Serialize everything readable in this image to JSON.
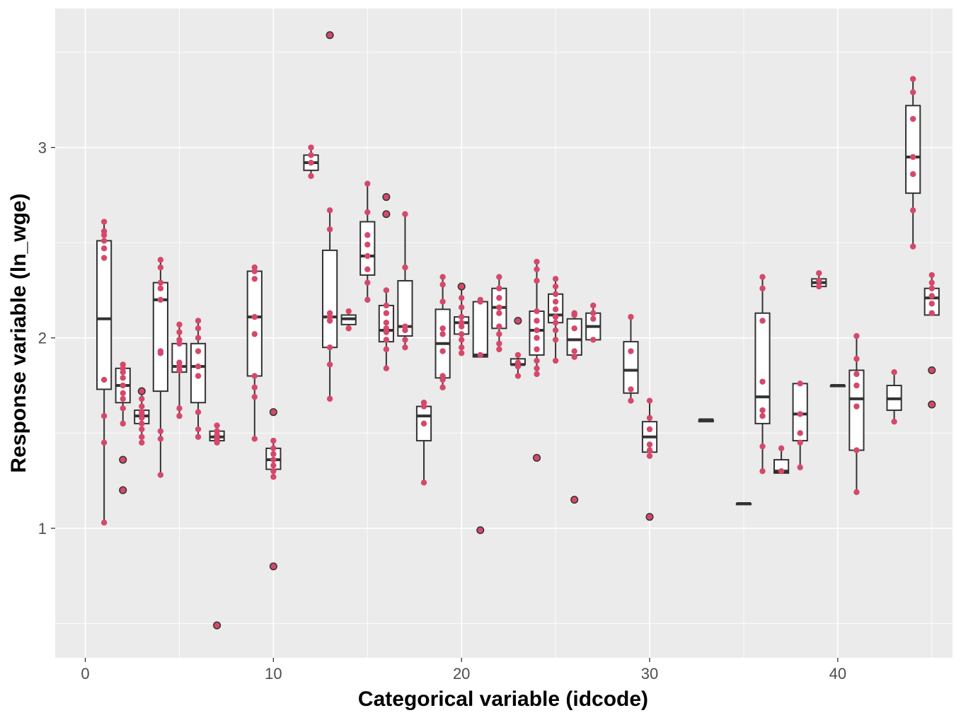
{
  "chart_data": {
    "type": "boxplot",
    "title": "",
    "xlabel": "Categorical variable (idcode)",
    "ylabel": "Response variable (ln_wge)",
    "xlim": [
      -1.6,
      46.1
    ],
    "ylim": [
      0.32,
      3.73
    ],
    "x_ticks": [
      0,
      10,
      20,
      30,
      40
    ],
    "y_ticks": [
      1,
      2,
      3
    ],
    "x_tick_labels": [
      "0",
      "10",
      "20",
      "30",
      "40"
    ],
    "y_tick_labels": [
      "1",
      "2",
      "3"
    ],
    "grid": true,
    "colors": {
      "panel_background": "#ebebeb",
      "grid_line": "#ffffff",
      "box_fill": "#ffffff",
      "box_line": "#333333",
      "points": "#d6486a",
      "outlier_fill": "#d6486a",
      "outlier_stroke": "#333333"
    },
    "boxes": [
      {
        "x": 1,
        "q1": 1.73,
        "median": 2.1,
        "q3": 2.51,
        "lo": 1.03,
        "hi": 2.6,
        "outliers": [],
        "points": [
          1.03,
          1.45,
          1.59,
          1.78,
          2.42,
          2.47,
          2.51,
          2.54,
          2.56,
          2.61
        ]
      },
      {
        "x": 2,
        "q1": 1.66,
        "median": 1.75,
        "q3": 1.84,
        "lo": 1.55,
        "hi": 1.86,
        "outliers": [
          1.36,
          1.2
        ],
        "points": [
          1.55,
          1.63,
          1.68,
          1.71,
          1.75,
          1.79,
          1.82,
          1.84,
          1.86
        ]
      },
      {
        "x": 3,
        "q1": 1.55,
        "median": 1.59,
        "q3": 1.62,
        "lo": 1.45,
        "hi": 1.72,
        "outliers": [
          1.72
        ],
        "points": [
          1.45,
          1.48,
          1.52,
          1.55,
          1.58,
          1.6,
          1.61,
          1.64,
          1.68
        ]
      },
      {
        "x": 4,
        "q1": 1.72,
        "median": 2.2,
        "q3": 2.29,
        "lo": 1.28,
        "hi": 2.41,
        "outliers": [],
        "points": [
          1.28,
          1.47,
          1.51,
          1.92,
          1.93,
          2.2,
          2.26,
          2.29,
          2.37,
          2.41
        ]
      },
      {
        "x": 5,
        "q1": 1.82,
        "median": 1.85,
        "q3": 1.97,
        "lo": 1.59,
        "hi": 2.07,
        "outliers": [],
        "points": [
          1.59,
          1.63,
          1.83,
          1.85,
          1.87,
          1.97,
          1.99,
          2.03,
          2.07
        ]
      },
      {
        "x": 6,
        "q1": 1.66,
        "median": 1.85,
        "q3": 1.97,
        "lo": 1.48,
        "hi": 2.09,
        "outliers": [],
        "points": [
          1.48,
          1.52,
          1.61,
          1.8,
          1.85,
          1.93,
          2.0,
          2.05,
          2.09
        ]
      },
      {
        "x": 7,
        "q1": 1.46,
        "median": 1.48,
        "q3": 1.51,
        "lo": 1.45,
        "hi": 1.54,
        "outliers": [
          0.49
        ],
        "points": [
          1.45,
          1.47,
          1.49,
          1.51,
          1.54
        ]
      },
      {
        "x": 9,
        "q1": 1.8,
        "median": 2.11,
        "q3": 2.35,
        "lo": 1.47,
        "hi": 2.37,
        "outliers": [],
        "points": [
          1.47,
          1.69,
          1.74,
          1.8,
          2.02,
          2.11,
          2.31,
          2.35,
          2.37
        ]
      },
      {
        "x": 10,
        "q1": 1.31,
        "median": 1.36,
        "q3": 1.42,
        "lo": 1.27,
        "hi": 1.46,
        "outliers": [
          1.61,
          0.8
        ],
        "points": [
          1.27,
          1.3,
          1.33,
          1.36,
          1.39,
          1.42,
          1.46
        ]
      },
      {
        "x": 12,
        "q1": 2.88,
        "median": 2.92,
        "q3": 2.96,
        "lo": 2.85,
        "hi": 3.0,
        "outliers": [],
        "points": [
          2.85,
          2.92,
          2.96,
          3.0
        ]
      },
      {
        "x": 13,
        "q1": 1.95,
        "median": 2.11,
        "q3": 2.46,
        "lo": 1.68,
        "hi": 2.67,
        "outliers": [
          3.59
        ],
        "points": [
          1.68,
          1.86,
          1.95,
          2.09,
          2.11,
          2.13,
          2.57,
          2.67
        ]
      },
      {
        "x": 14,
        "q1": 2.07,
        "median": 2.1,
        "q3": 2.12,
        "lo": 2.05,
        "hi": 2.14,
        "outliers": [],
        "points": [
          2.05,
          2.14
        ]
      },
      {
        "x": 15,
        "q1": 2.33,
        "median": 2.43,
        "q3": 2.61,
        "lo": 2.2,
        "hi": 2.81,
        "outliers": [],
        "points": [
          2.2,
          2.29,
          2.36,
          2.43,
          2.49,
          2.54,
          2.66,
          2.81
        ]
      },
      {
        "x": 16,
        "q1": 1.98,
        "median": 2.04,
        "q3": 2.17,
        "lo": 1.84,
        "hi": 2.25,
        "outliers": [
          2.74,
          2.65
        ],
        "points": [
          1.84,
          1.94,
          1.99,
          2.03,
          2.05,
          2.08,
          2.13,
          2.17,
          2.25
        ]
      },
      {
        "x": 17,
        "q1": 2.01,
        "median": 2.06,
        "q3": 2.3,
        "lo": 1.95,
        "hi": 2.65,
        "outliers": [],
        "points": [
          1.95,
          1.99,
          2.04,
          2.06,
          2.37,
          2.65
        ]
      },
      {
        "x": 18,
        "q1": 1.46,
        "median": 1.59,
        "q3": 1.64,
        "lo": 1.24,
        "hi": 1.66,
        "outliers": [],
        "points": [
          1.24,
          1.55,
          1.64,
          1.66
        ]
      },
      {
        "x": 19,
        "q1": 1.79,
        "median": 1.97,
        "q3": 2.15,
        "lo": 1.74,
        "hi": 2.32,
        "outliers": [],
        "points": [
          1.74,
          1.78,
          1.8,
          1.93,
          2.02,
          2.05,
          2.19,
          2.28,
          2.32
        ]
      },
      {
        "x": 20,
        "q1": 2.02,
        "median": 2.08,
        "q3": 2.11,
        "lo": 1.92,
        "hi": 2.27,
        "outliers": [
          2.27
        ],
        "points": [
          1.92,
          1.95,
          1.99,
          2.02,
          2.06,
          2.08,
          2.11,
          2.16,
          2.21
        ]
      },
      {
        "x": 21,
        "q1": 1.9,
        "median": 1.91,
        "q3": 2.19,
        "lo": 1.9,
        "hi": 2.2,
        "outliers": [
          0.99
        ],
        "points": [
          1.91,
          2.19,
          2.2
        ]
      },
      {
        "x": 22,
        "q1": 2.05,
        "median": 2.16,
        "q3": 2.26,
        "lo": 1.94,
        "hi": 2.32,
        "outliers": [],
        "points": [
          1.94,
          1.97,
          2.02,
          2.06,
          2.13,
          2.16,
          2.21,
          2.26,
          2.32
        ]
      },
      {
        "x": 23,
        "q1": 1.86,
        "median": 1.86,
        "q3": 1.89,
        "lo": 1.8,
        "hi": 1.91,
        "outliers": [
          2.09
        ],
        "points": [
          1.8,
          1.85,
          1.87,
          1.91
        ]
      },
      {
        "x": 24,
        "q1": 1.91,
        "median": 2.04,
        "q3": 2.14,
        "lo": 1.81,
        "hi": 2.4,
        "outliers": [
          1.37
        ],
        "points": [
          1.81,
          1.84,
          1.88,
          1.94,
          2.0,
          2.04,
          2.09,
          2.14,
          2.3,
          2.36,
          2.4
        ]
      },
      {
        "x": 25,
        "q1": 2.08,
        "median": 2.12,
        "q3": 2.23,
        "lo": 1.88,
        "hi": 2.31,
        "outliers": [],
        "points": [
          1.88,
          1.99,
          2.04,
          2.08,
          2.11,
          2.15,
          2.19,
          2.23,
          2.27,
          2.31
        ]
      },
      {
        "x": 26,
        "q1": 1.91,
        "median": 1.99,
        "q3": 2.1,
        "lo": 1.9,
        "hi": 2.13,
        "outliers": [
          1.15
        ],
        "points": [
          1.9,
          1.93,
          2.05,
          2.12,
          2.13
        ]
      },
      {
        "x": 27,
        "q1": 1.99,
        "median": 2.06,
        "q3": 2.13,
        "lo": 1.99,
        "hi": 2.17,
        "outliers": [],
        "points": [
          1.99,
          2.1,
          2.13,
          2.17
        ]
      },
      {
        "x": 29,
        "q1": 1.71,
        "median": 1.83,
        "q3": 1.98,
        "lo": 1.67,
        "hi": 2.11,
        "outliers": [],
        "points": [
          1.67,
          1.73,
          1.93,
          2.11
        ]
      },
      {
        "x": 30,
        "q1": 1.4,
        "median": 1.48,
        "q3": 1.56,
        "lo": 1.38,
        "hi": 1.67,
        "outliers": [
          1.06
        ],
        "points": [
          1.38,
          1.41,
          1.44,
          1.52,
          1.58,
          1.67
        ]
      },
      {
        "x": 33,
        "q1": 1.56,
        "median": 1.57,
        "q3": 1.57,
        "lo": 1.56,
        "hi": 1.57,
        "outliers": [],
        "points": []
      },
      {
        "x": 35,
        "q1": 1.13,
        "median": 1.13,
        "q3": 1.13,
        "lo": 1.13,
        "hi": 1.13,
        "outliers": [],
        "points": []
      },
      {
        "x": 36,
        "q1": 1.55,
        "median": 1.69,
        "q3": 2.13,
        "lo": 1.3,
        "hi": 2.32,
        "outliers": [],
        "points": [
          1.3,
          1.43,
          1.59,
          1.62,
          1.77,
          2.09,
          2.26,
          2.32
        ]
      },
      {
        "x": 37,
        "q1": 1.29,
        "median": 1.3,
        "q3": 1.36,
        "lo": 1.29,
        "hi": 1.42,
        "outliers": [],
        "points": [
          1.3,
          1.42
        ]
      },
      {
        "x": 38,
        "q1": 1.46,
        "median": 1.6,
        "q3": 1.76,
        "lo": 1.32,
        "hi": 1.76,
        "outliers": [],
        "points": [
          1.32,
          1.45,
          1.5,
          1.6,
          1.76
        ]
      },
      {
        "x": 39,
        "q1": 2.27,
        "median": 2.29,
        "q3": 2.31,
        "lo": 2.27,
        "hi": 2.34,
        "outliers": [],
        "points": [
          2.27,
          2.3,
          2.34
        ]
      },
      {
        "x": 40,
        "q1": 1.75,
        "median": 1.75,
        "q3": 1.75,
        "lo": 1.75,
        "hi": 1.75,
        "outliers": [],
        "points": []
      },
      {
        "x": 41,
        "q1": 1.41,
        "median": 1.68,
        "q3": 1.83,
        "lo": 1.19,
        "hi": 2.01,
        "outliers": [],
        "points": [
          1.19,
          1.41,
          1.64,
          1.75,
          1.81,
          1.89,
          2.01
        ]
      },
      {
        "x": 43,
        "q1": 1.62,
        "median": 1.68,
        "q3": 1.75,
        "lo": 1.56,
        "hi": 1.82,
        "outliers": [],
        "points": [
          1.56,
          1.82
        ]
      },
      {
        "x": 44,
        "q1": 2.76,
        "median": 2.95,
        "q3": 3.22,
        "lo": 2.48,
        "hi": 3.36,
        "outliers": [],
        "points": [
          2.48,
          2.67,
          2.86,
          2.95,
          3.15,
          3.29,
          3.36
        ]
      },
      {
        "x": 45,
        "q1": 2.12,
        "median": 2.21,
        "q3": 2.26,
        "lo": 2.12,
        "hi": 2.33,
        "outliers": [
          1.83,
          1.65
        ],
        "points": [
          2.13,
          2.18,
          2.22,
          2.26,
          2.29,
          2.33
        ]
      }
    ]
  }
}
